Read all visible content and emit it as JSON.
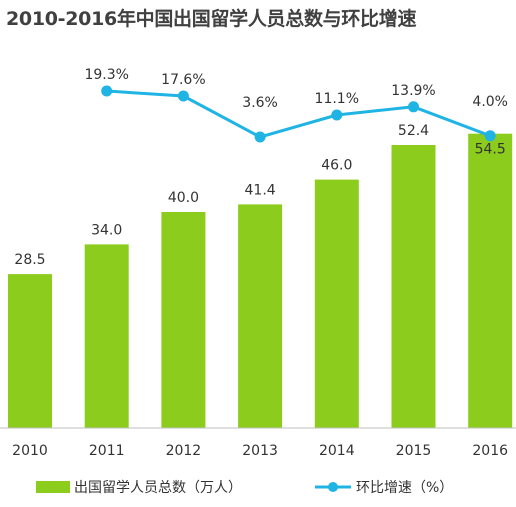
{
  "chart_data": {
    "type": "bar",
    "title": "2010-2016年中国出国留学人员总数与环比增速",
    "categories": [
      "2010",
      "2011",
      "2012",
      "2013",
      "2014",
      "2015",
      "2016"
    ],
    "series": [
      {
        "name": "出国留学人员总数（万人）",
        "type": "bar",
        "values": [
          28.5,
          34.0,
          40.0,
          41.4,
          46.0,
          52.4,
          54.5
        ],
        "labels": [
          "28.5",
          "34.0",
          "40.0",
          "41.4",
          "46.0",
          "52.4",
          "54.5"
        ],
        "color": "#8ccc1c"
      },
      {
        "name": "环比增速（%）",
        "type": "line",
        "values": [
          null,
          19.3,
          17.6,
          3.6,
          11.1,
          13.9,
          4.0
        ],
        "labels": [
          "",
          "19.3%",
          "17.6%",
          "3.6%",
          "11.1%",
          "13.9%",
          "4.0%"
        ],
        "color": "#1fb4e4"
      }
    ],
    "legend_position": "bottom",
    "grid": false
  }
}
